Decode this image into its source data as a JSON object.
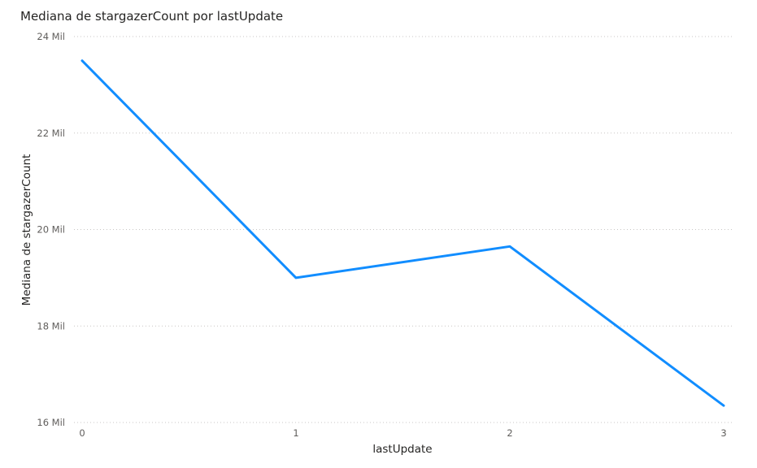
{
  "chart_data": {
    "type": "line",
    "title": "Mediana de stargazerCount por lastUpdate",
    "xlabel": "lastUpdate",
    "ylabel": "Mediana de stargazerCount",
    "x": [
      0,
      1,
      2,
      3
    ],
    "x_tick_labels": [
      "0",
      "1",
      "2",
      "3"
    ],
    "series": [
      {
        "values": [
          23500,
          19000,
          19650,
          16350
        ]
      }
    ],
    "ylim": [
      16000,
      24000
    ],
    "y_ticks": [
      16000,
      18000,
      20000,
      22000,
      24000
    ],
    "y_tick_labels": [
      "16 Mil",
      "18 Mil",
      "20 Mil",
      "22 Mil",
      "24 Mil"
    ],
    "grid": true,
    "line_color": "#118DFF"
  }
}
